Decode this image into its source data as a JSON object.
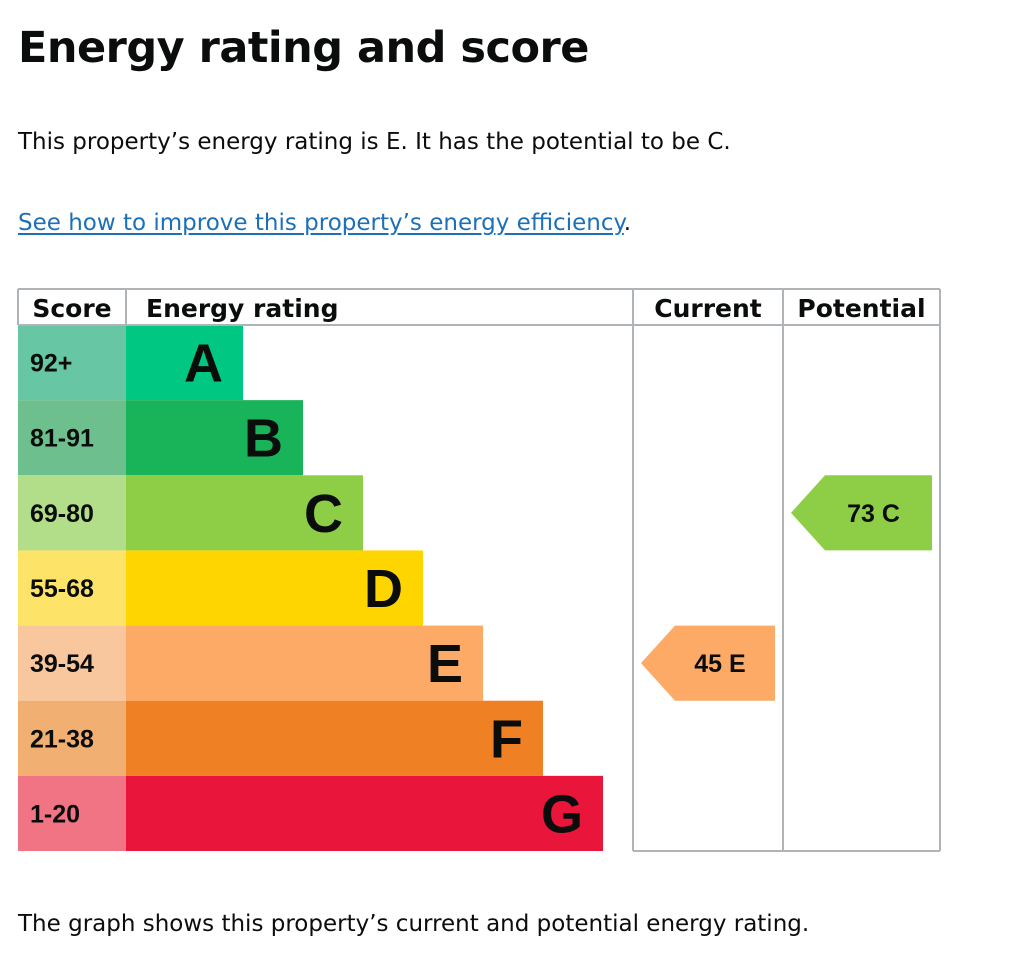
{
  "page": {
    "title": "Energy rating and score",
    "intro": "This property’s energy rating is E. It has the potential to be C.",
    "link_text": "See how to improve this property’s energy efficiency",
    "link_suffix": ".",
    "footer": "The graph shows this property’s current and potential energy rating."
  },
  "chart_data": {
    "type": "bar",
    "headers": {
      "score": "Score",
      "rating": "Energy rating",
      "current": "Current",
      "potential": "Potential"
    },
    "bands": [
      {
        "letter": "A",
        "range": "92+",
        "value": 1,
        "color": "#00c781",
        "score_bg": "#67c6a3"
      },
      {
        "letter": "B",
        "range": "81-91",
        "value": 2,
        "color": "#19b459",
        "score_bg": "#6dc08e"
      },
      {
        "letter": "C",
        "range": "69-80",
        "value": 3,
        "color": "#8dce46",
        "score_bg": "#b3de89"
      },
      {
        "letter": "D",
        "range": "55-68",
        "value": 4,
        "color": "#ffd500",
        "score_bg": "#fde469"
      },
      {
        "letter": "E",
        "range": "39-54",
        "value": 5,
        "color": "#fcaa65",
        "score_bg": "#f8c79d"
      },
      {
        "letter": "F",
        "range": "21-38",
        "value": 6,
        "color": "#ef8023",
        "score_bg": "#f1af72"
      },
      {
        "letter": "G",
        "range": "1-20",
        "value": 7,
        "color": "#e9153b",
        "score_bg": "#f07484"
      }
    ],
    "current": {
      "score": 45,
      "letter": "E",
      "label": "45  E",
      "color": "#fcaa65"
    },
    "potential": {
      "score": 73,
      "letter": "C",
      "label": "73  C",
      "color": "#8dce46"
    }
  }
}
